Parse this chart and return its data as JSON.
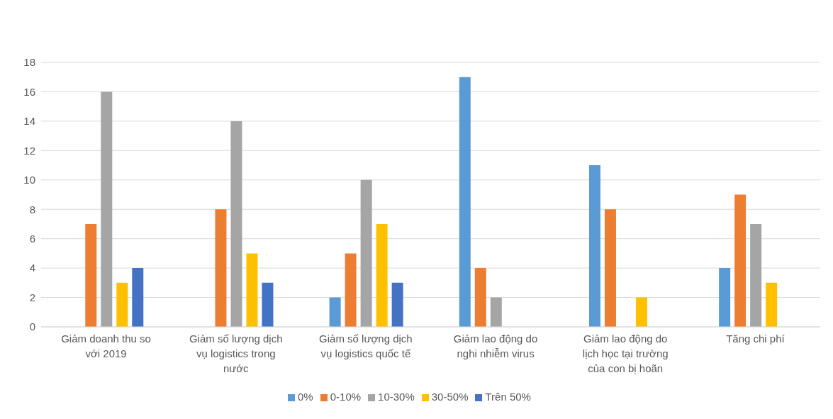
{
  "chart_data": {
    "type": "bar",
    "categories": [
      "Giảm doanh thu so với 2019",
      "Giảm số lượng dịch vụ logistics trong nước",
      "Giảm số lượng dịch vụ logistics quốc tế",
      "Giảm lao động do nghi nhiễm virus",
      "Giảm lao động do lịch học tại trường của con bị hoãn",
      "Tăng chi phí"
    ],
    "series": [
      {
        "name": "0%",
        "color": "#5b9bd5",
        "values": [
          0,
          0,
          2,
          17,
          11,
          4
        ]
      },
      {
        "name": "0-10%",
        "color": "#ed7d31",
        "values": [
          7,
          8,
          5,
          4,
          8,
          9
        ]
      },
      {
        "name": "10-30%",
        "color": "#a5a5a5",
        "values": [
          16,
          14,
          10,
          2,
          0,
          7
        ]
      },
      {
        "name": "30-50%",
        "color": "#ffc000",
        "values": [
          3,
          5,
          7,
          0,
          2,
          3
        ]
      },
      {
        "name": "Trên 50%",
        "color": "#4472c4",
        "values": [
          4,
          3,
          3,
          0,
          0,
          0
        ]
      }
    ],
    "ylim": [
      0,
      18
    ],
    "yticks": [
      0,
      2,
      4,
      6,
      8,
      10,
      12,
      14,
      16,
      18
    ],
    "grid": "y",
    "legend": "bottom"
  }
}
